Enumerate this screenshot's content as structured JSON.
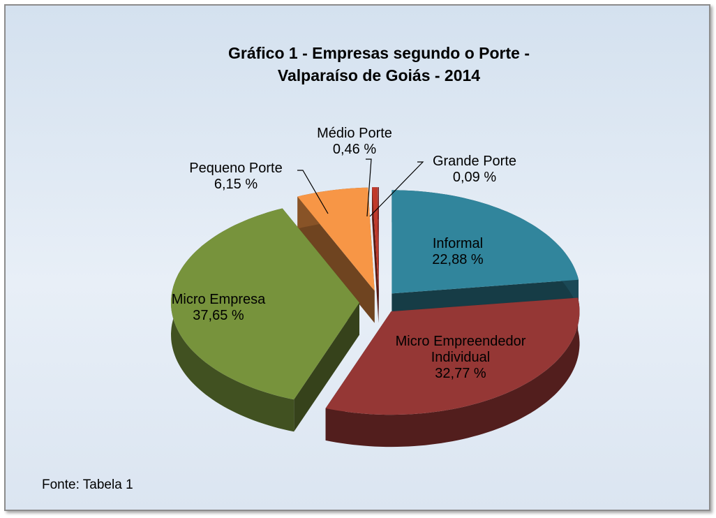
{
  "chart_data": {
    "type": "pie",
    "title": "Gráfico 1 - Empresas segundo o Porte - Valparaíso de Goiás - 2014",
    "categories": [
      "Informal",
      "Micro Empreendedor Individual",
      "Micro Empresa",
      "Pequeno Porte",
      "Médio Porte",
      "Grande Porte"
    ],
    "values": [
      22.88,
      32.77,
      37.65,
      6.15,
      0.46,
      0.09
    ],
    "value_labels": [
      "22,88 %",
      "32,77 %",
      "37,65 %",
      "6,15 %",
      "0,46 %",
      "0,09 %"
    ],
    "colors": [
      "#31859c",
      "#953735",
      "#77933c",
      "#f79646",
      "#c0392b",
      "#7b1c1c"
    ],
    "note": "Fonte: Tabela 1"
  }
}
